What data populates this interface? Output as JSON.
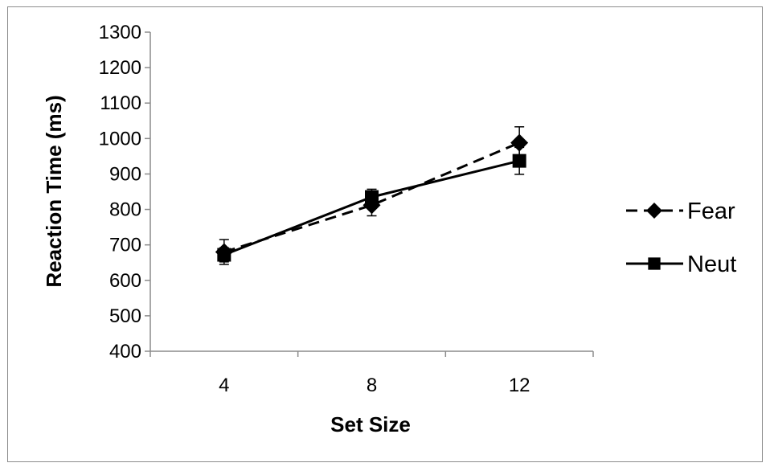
{
  "chart_data": {
    "type": "line",
    "title": "",
    "xlabel": "Set Size",
    "ylabel": "Reaction Time (ms)",
    "categories": [
      "4",
      "8",
      "12"
    ],
    "ylim": [
      400,
      1300
    ],
    "yticks": [
      "400",
      "500",
      "600",
      "700",
      "800",
      "900",
      "1000",
      "1100",
      "1200",
      "1300"
    ],
    "grid": false,
    "legend_position": "right",
    "series": [
      {
        "name": "Fear",
        "values": [
          680,
          812,
          988
        ],
        "error": [
          35,
          30,
          45
        ],
        "line_style": "dashed",
        "marker": "diamond",
        "color": "#000000"
      },
      {
        "name": "Neut",
        "values": [
          672,
          835,
          937
        ],
        "error": [
          20,
          22,
          38
        ],
        "line_style": "solid",
        "marker": "square",
        "color": "#000000"
      }
    ]
  }
}
